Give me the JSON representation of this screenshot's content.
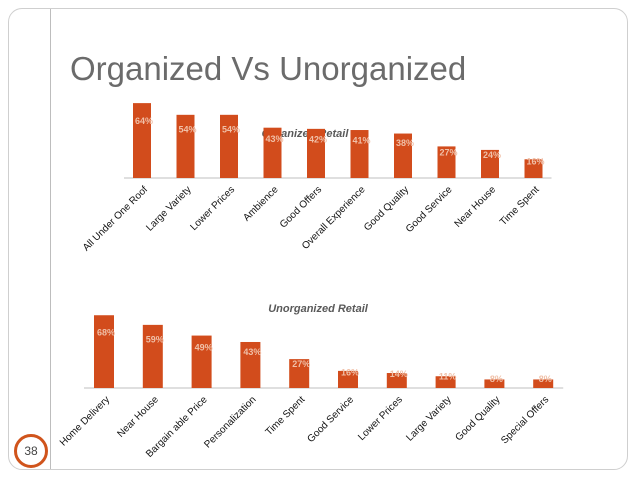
{
  "slide": {
    "title": "Organized Vs Unorganized",
    "page_number": "38"
  },
  "colors": {
    "bar": "#d24c1c",
    "value_label": "#f0c0a8",
    "chart_title": "#595959",
    "axis": "#bfbfbf",
    "accent": "#d0541c"
  },
  "chart_data": [
    {
      "type": "bar",
      "title": "Organized Retail",
      "categories": [
        "All Under One Roof",
        "Large Variety",
        "Lower Prices",
        "Ambience",
        "Good Offers",
        "Overall Experience",
        "Good Quality",
        "Good Service",
        "Near House",
        "Time Spent"
      ],
      "values": [
        64,
        54,
        54,
        43,
        42,
        41,
        38,
        27,
        24,
        16
      ],
      "value_labels": [
        "64%",
        "54%",
        "54%",
        "43%",
        "42%",
        "41%",
        "38%",
        "27%",
        "24%",
        "16%"
      ],
      "ylim": [
        0,
        70
      ],
      "grid": false,
      "legend": "none"
    },
    {
      "type": "bar",
      "title": "Unorganized Retail",
      "categories": [
        "Home Delivery",
        "Near House",
        "Bargain able Price",
        "Personalization",
        "Time Spent",
        "Good Service",
        "Lower Prices",
        "Large Variety",
        "Good Quality",
        "Special Offers"
      ],
      "values": [
        68,
        59,
        49,
        43,
        27,
        16,
        14,
        11,
        8,
        8
      ],
      "value_labels": [
        "68%",
        "59%",
        "49%",
        "43%",
        "27%",
        "16%",
        "14%",
        "11%",
        "8%",
        "8%"
      ],
      "ylim": [
        0,
        75
      ],
      "grid": false,
      "legend": "none"
    }
  ]
}
